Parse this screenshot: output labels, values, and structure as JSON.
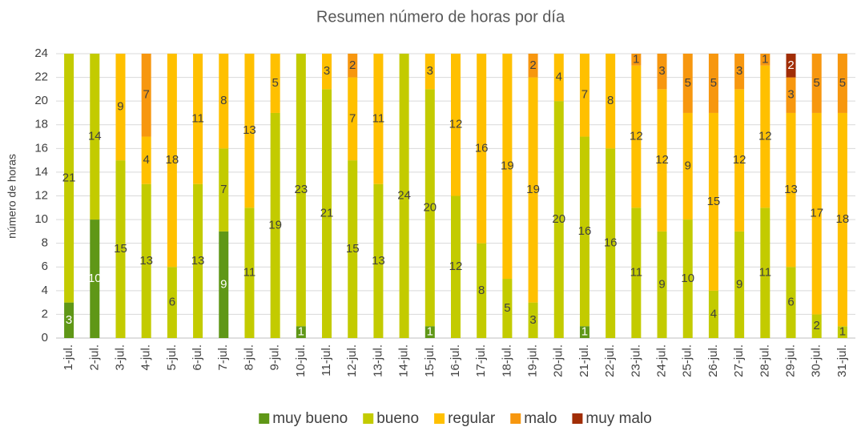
{
  "chart_data": {
    "type": "stacked_bar",
    "title": "Resumen número de horas por día",
    "y_label": "número de horas",
    "categories": [
      "1-jul.",
      "2-jul.",
      "3-jul.",
      "4-jul.",
      "5-jul.",
      "6-jul.",
      "7-jul.",
      "8-jul.",
      "9-jul.",
      "10-jul.",
      "11-jul.",
      "12-jul.",
      "13-jul.",
      "14-jul.",
      "15-jul.",
      "16-jul.",
      "17-jul.",
      "18-jul.",
      "19-jul.",
      "20-jul.",
      "21-jul.",
      "22-jul.",
      "23-jul.",
      "24-jul.",
      "25-jul.",
      "26-jul.",
      "27-jul.",
      "28-jul.",
      "29-jul.",
      "30-jul.",
      "31-jul."
    ],
    "series": [
      {
        "name": "muy bueno",
        "color": "#5f9717",
        "values": [
          3,
          10,
          null,
          null,
          null,
          null,
          9,
          null,
          null,
          1,
          null,
          null,
          null,
          null,
          1,
          null,
          null,
          null,
          null,
          null,
          1,
          null,
          null,
          null,
          null,
          null,
          null,
          null,
          null,
          null,
          null
        ]
      },
      {
        "name": "bueno",
        "color": "#c3cb00",
        "values": [
          21,
          14,
          15,
          13,
          6,
          13,
          7,
          11,
          19,
          23,
          21,
          15,
          13,
          24,
          20,
          12,
          8,
          5,
          3,
          20,
          16,
          16,
          11,
          9,
          10,
          4,
          9,
          11,
          6,
          2,
          1
        ]
      },
      {
        "name": "regular",
        "color": "#ffc000",
        "values": [
          null,
          null,
          9,
          4,
          18,
          11,
          8,
          13,
          5,
          null,
          3,
          7,
          11,
          null,
          3,
          12,
          16,
          19,
          19,
          4,
          7,
          8,
          12,
          12,
          9,
          15,
          12,
          12,
          13,
          17,
          18
        ]
      },
      {
        "name": "malo",
        "color": "#f7970f",
        "values": [
          null,
          null,
          null,
          7,
          null,
          null,
          null,
          null,
          null,
          null,
          null,
          2,
          null,
          null,
          null,
          null,
          null,
          null,
          2,
          null,
          null,
          null,
          1,
          3,
          5,
          5,
          3,
          1,
          3,
          5,
          5
        ]
      },
      {
        "name": "muy malo",
        "color": "#a12d06",
        "values": [
          null,
          null,
          null,
          null,
          null,
          null,
          null,
          null,
          null,
          null,
          null,
          null,
          null,
          null,
          null,
          null,
          null,
          null,
          null,
          null,
          null,
          null,
          null,
          null,
          null,
          null,
          null,
          null,
          2,
          null,
          null
        ]
      }
    ],
    "ylim": [
      0,
      24
    ],
    "yticks": [
      0,
      2,
      4,
      6,
      8,
      10,
      12,
      14,
      16,
      18,
      20,
      22,
      24
    ],
    "grid": true,
    "legend": "bottom"
  }
}
